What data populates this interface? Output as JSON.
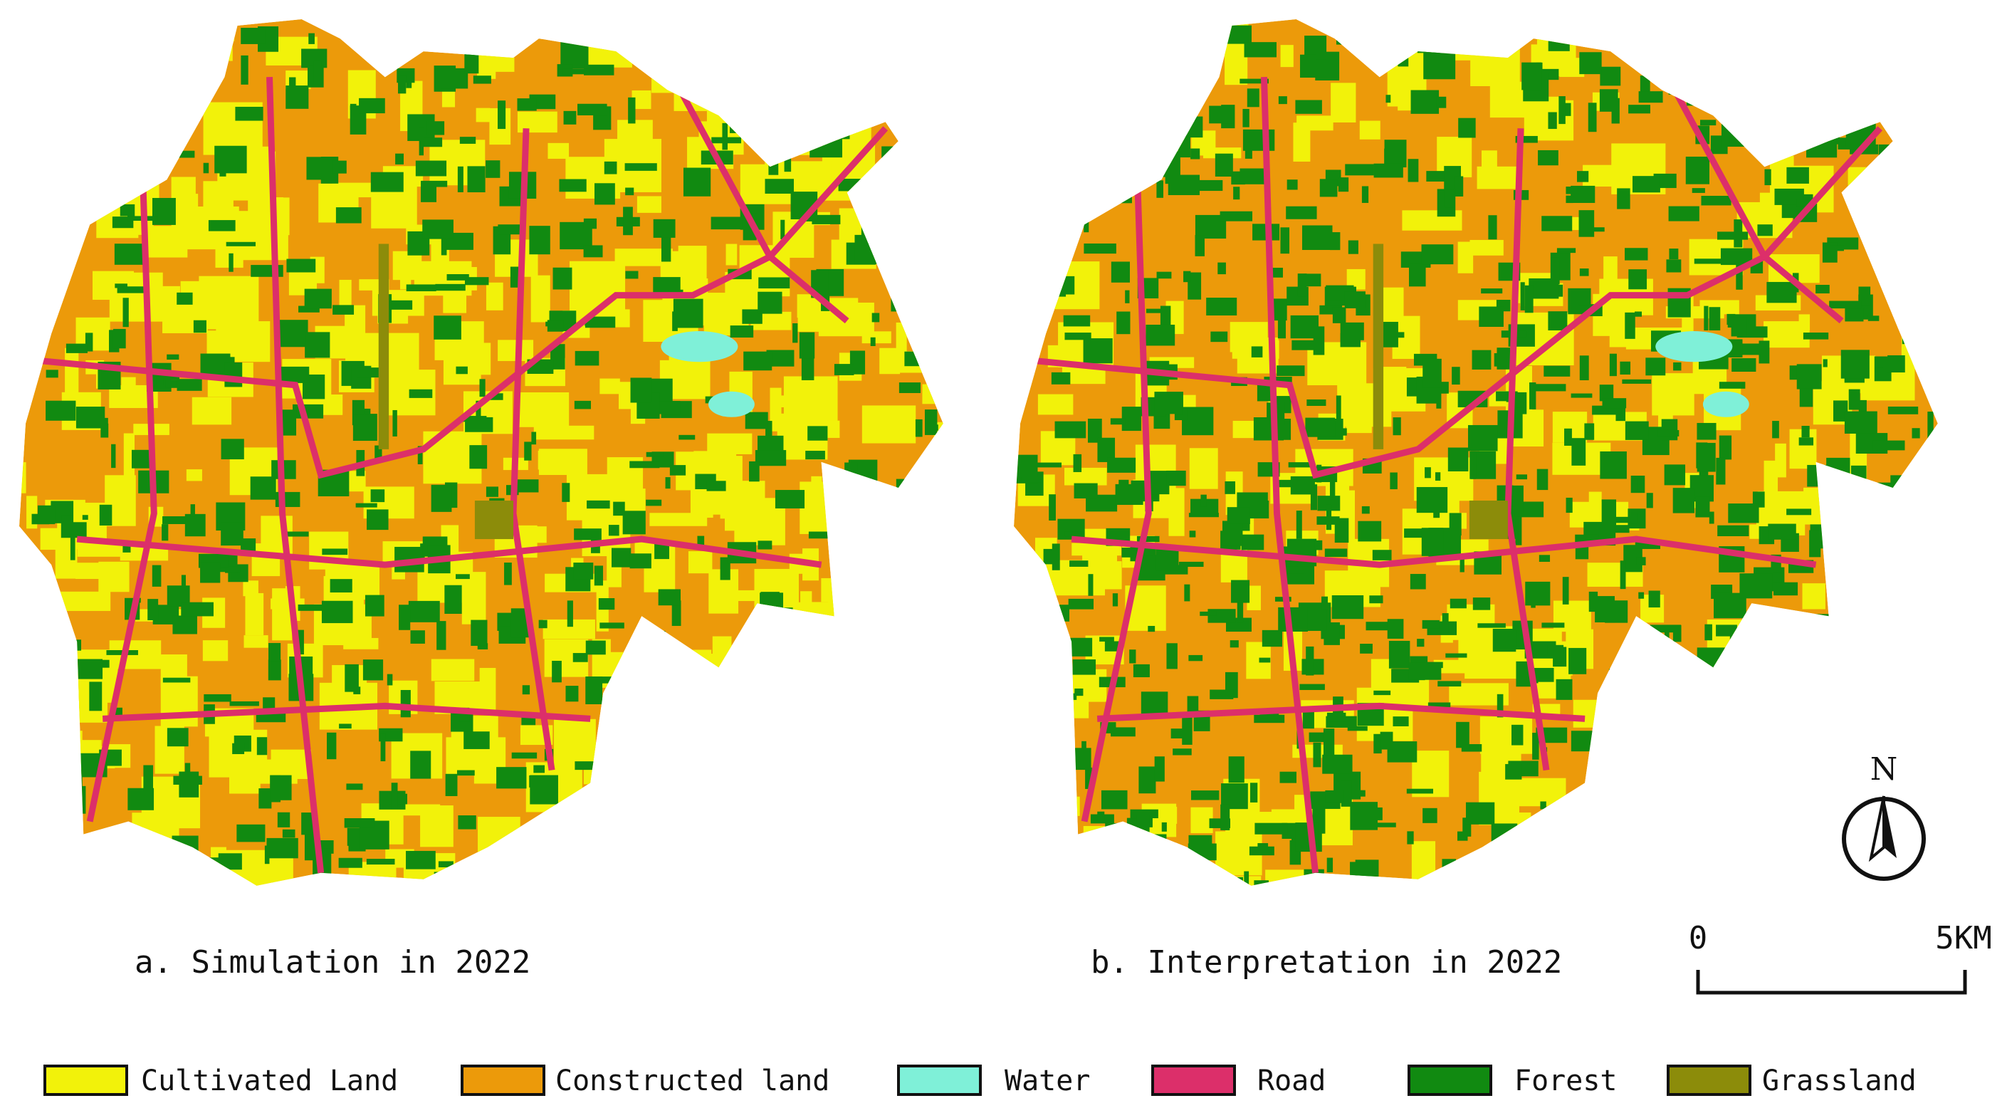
{
  "captions": [
    "a. Simulation in 2022",
    "b. Interpretation in 2022"
  ],
  "legend": [
    {
      "label": "Cultivated Land",
      "color": "#f2f20a"
    },
    {
      "label": "Constructed land",
      "color": "#ec9a0a"
    },
    {
      "label": "Water",
      "color": "#7ff0d8"
    },
    {
      "label": "Road",
      "color": "#dc2f6a"
    },
    {
      "label": "Forest",
      "color": "#118a11"
    },
    {
      "label": "Grassland",
      "color": "#8c8c0a"
    }
  ],
  "north_label": "N",
  "scale_bar": {
    "start": "0",
    "end": "5KM"
  }
}
